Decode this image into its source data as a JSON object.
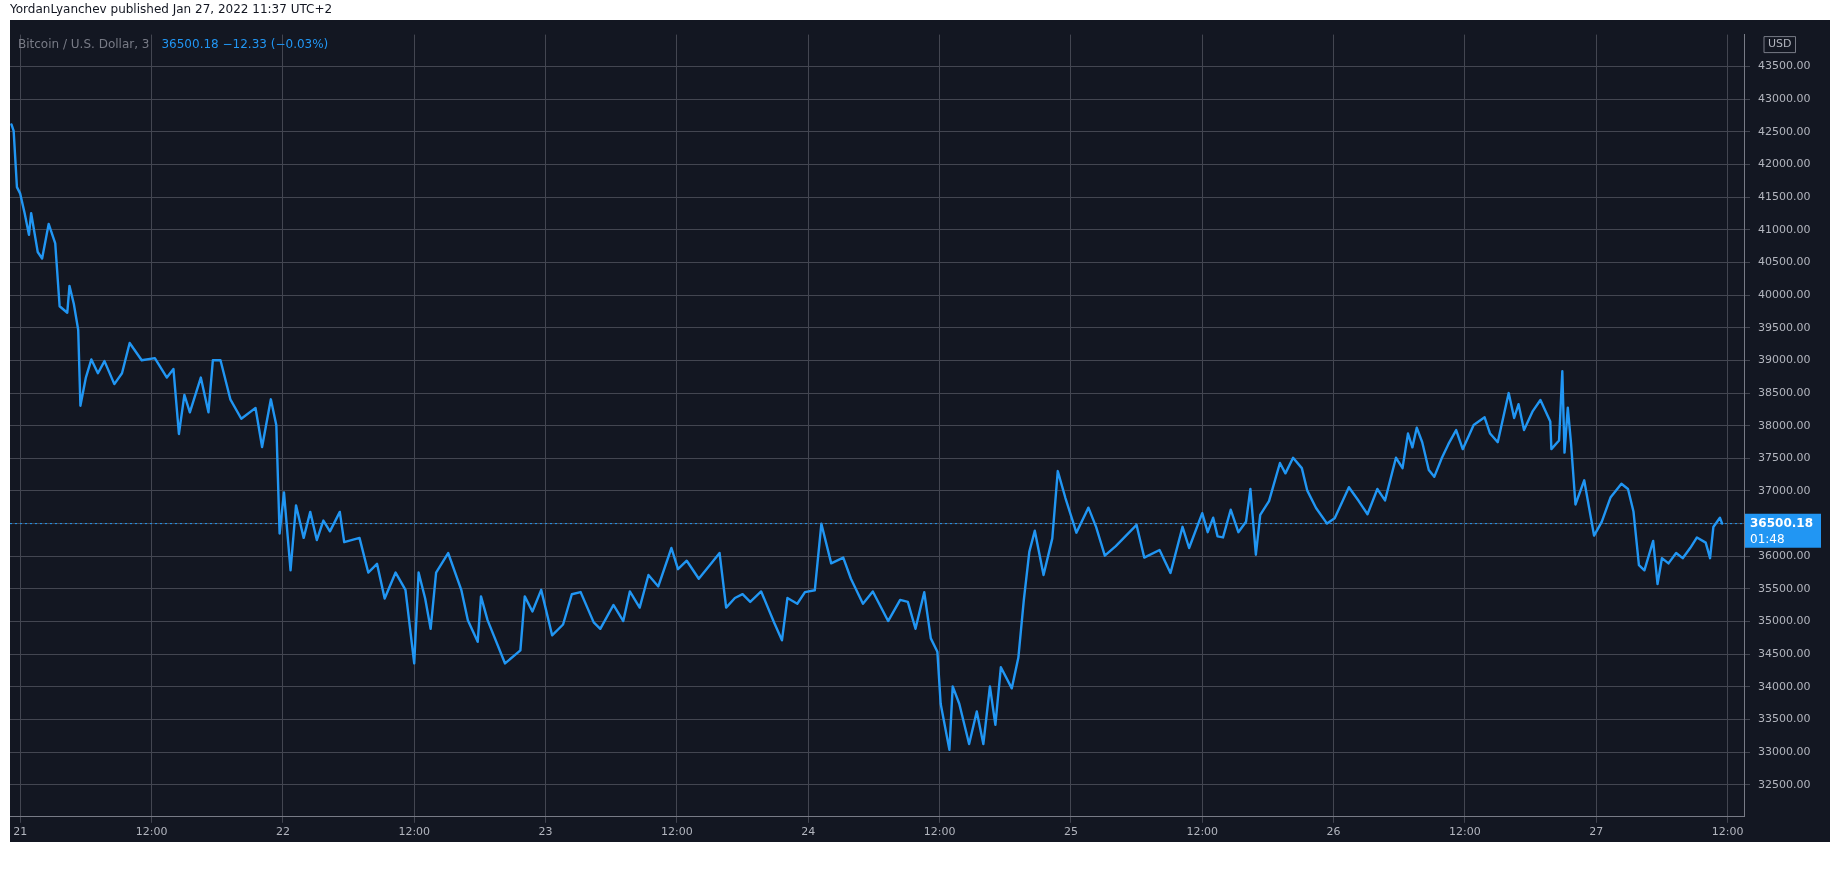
{
  "chart_data": {
    "type": "line",
    "title": "Bitcoin / U.S. Dollar, 3",
    "subtitle": "36500.18 −12.33 (−0.03%)",
    "ylabel": "USD",
    "annotations": [
      "YordanLyanchev published Jan 27, 2022 11:37 UTC+2",
      "01:48"
    ],
    "color": "#2196f3",
    "marker": "none",
    "grid": true,
    "xlim": [
      "2022-01-20T23:04",
      "2022-01-27T13:30"
    ],
    "ylim": [
      32010,
      43990
    ],
    "xticks": [
      {
        "value": "2022-01-21T00:00",
        "label": "21"
      },
      {
        "value": "2022-01-21T12:00",
        "label": "12:00"
      },
      {
        "value": "2022-01-22T00:00",
        "label": "22"
      },
      {
        "value": "2022-01-22T12:00",
        "label": "12:00"
      },
      {
        "value": "2022-01-23T00:00",
        "label": "23"
      },
      {
        "value": "2022-01-23T12:00",
        "label": "12:00"
      },
      {
        "value": "2022-01-24T00:00",
        "label": "24"
      },
      {
        "value": "2022-01-24T12:00",
        "label": "12:00"
      },
      {
        "value": "2022-01-25T00:00",
        "label": "25"
      },
      {
        "value": "2022-01-25T12:00",
        "label": "12:00"
      },
      {
        "value": "2022-01-26T00:00",
        "label": "26"
      },
      {
        "value": "2022-01-26T12:00",
        "label": "12:00"
      },
      {
        "value": "2022-01-27T00:00",
        "label": "27"
      },
      {
        "value": "2022-01-27T12:00",
        "label": "12:00"
      }
    ],
    "yticks": [
      {
        "value": 32500,
        "label": "32500.00"
      },
      {
        "value": 33000,
        "label": "33000.00"
      },
      {
        "value": 33500,
        "label": "33500.00"
      },
      {
        "value": 34000,
        "label": "34000.00"
      },
      {
        "value": 34500,
        "label": "34500.00"
      },
      {
        "value": 35000,
        "label": "35000.00"
      },
      {
        "value": 35500,
        "label": "35500.00"
      },
      {
        "value": 36000,
        "label": "36000.00"
      },
      {
        "value": 36500,
        "label": null
      },
      {
        "value": 37000,
        "label": "37000.00"
      },
      {
        "value": 37500,
        "label": "37500.00"
      },
      {
        "value": 38000,
        "label": "38000.00"
      },
      {
        "value": 38500,
        "label": "38500.00"
      },
      {
        "value": 39000,
        "label": "39000.00"
      },
      {
        "value": 39500,
        "label": "39500.00"
      },
      {
        "value": 40000,
        "label": "40000.00"
      },
      {
        "value": 40500,
        "label": "40500.00"
      },
      {
        "value": 41000,
        "label": "41000.00"
      },
      {
        "value": 41500,
        "label": "41500.00"
      },
      {
        "value": 42000,
        "label": "42000.00"
      },
      {
        "value": 42500,
        "label": "42500.00"
      },
      {
        "value": 43000,
        "label": "43000.00"
      },
      {
        "value": 43500,
        "label": "43500.00"
      }
    ],
    "ref_lines": [
      {
        "axis": "y",
        "value": 36500.18,
        "label": "36500.18",
        "color": "#2196f3",
        "line_style": "dotted"
      }
    ],
    "x": [
      "2022-01-20T23:12",
      "2022-01-20T23:24",
      "2022-01-20T23:42",
      "2022-01-21T00:00",
      "2022-01-21T00:24",
      "2022-01-21T00:48",
      "2022-01-21T01:00",
      "2022-01-21T01:36",
      "2022-01-21T02:00",
      "2022-01-21T02:36",
      "2022-01-21T03:12",
      "2022-01-21T03:36",
      "2022-01-21T04:18",
      "2022-01-21T04:30",
      "2022-01-21T04:54",
      "2022-01-21T05:18",
      "2022-01-21T05:30",
      "2022-01-21T06:00",
      "2022-01-21T06:30",
      "2022-01-21T07:06",
      "2022-01-21T07:42",
      "2022-01-21T08:36",
      "2022-01-21T09:18",
      "2022-01-21T10:00",
      "2022-01-21T11:06",
      "2022-01-21T12:18",
      "2022-01-21T13:24",
      "2022-01-21T14:00",
      "2022-01-21T14:30",
      "2022-01-21T15:00",
      "2022-01-21T15:30",
      "2022-01-21T16:30",
      "2022-01-21T17:12",
      "2022-01-21T17:36",
      "2022-01-21T18:18",
      "2022-01-21T19:12",
      "2022-01-21T20:12",
      "2022-01-21T21:30",
      "2022-01-21T22:06",
      "2022-01-21T22:54",
      "2022-01-21T23:24",
      "2022-01-21T23:42",
      "2022-01-22T00:06",
      "2022-01-22T00:42",
      "2022-01-22T01:12",
      "2022-01-22T01:54",
      "2022-01-22T02:30",
      "2022-01-22T03:06",
      "2022-01-22T03:42",
      "2022-01-22T04:18",
      "2022-01-22T05:12",
      "2022-01-22T05:36",
      "2022-01-22T07:00",
      "2022-01-22T07:48",
      "2022-01-22T08:36",
      "2022-01-22T09:18",
      "2022-01-22T10:18",
      "2022-01-22T11:12",
      "2022-01-22T12:00",
      "2022-01-22T12:24",
      "2022-01-22T13:00",
      "2022-01-22T13:30",
      "2022-01-22T14:00",
      "2022-01-22T15:06",
      "2022-01-22T16:18",
      "2022-01-22T16:54",
      "2022-01-22T17:48",
      "2022-01-22T18:06",
      "2022-01-22T18:42",
      "2022-01-22T20:18",
      "2022-01-22T21:42",
      "2022-01-22T22:06",
      "2022-01-22T22:48",
      "2022-01-22T23:36",
      "2022-01-23T00:36",
      "2022-01-23T01:36",
      "2022-01-23T02:24",
      "2022-01-23T03:12",
      "2022-01-23T04:24",
      "2022-01-23T05:00",
      "2022-01-23T06:12",
      "2022-01-23T07:06",
      "2022-01-23T07:42",
      "2022-01-23T08:36",
      "2022-01-23T09:24",
      "2022-01-23T10:18",
      "2022-01-23T11:30",
      "2022-01-23T12:06",
      "2022-01-23T12:54",
      "2022-01-23T14:00",
      "2022-01-23T15:00",
      "2022-01-23T15:54",
      "2022-01-23T16:30",
      "2022-01-23T17:18",
      "2022-01-23T18:00",
      "2022-01-23T18:42",
      "2022-01-23T19:42",
      "2022-01-23T20:54",
      "2022-01-23T21:36",
      "2022-01-23T22:06",
      "2022-01-23T23:00",
      "2022-01-23T23:42",
      "2022-01-24T00:36",
      "2022-01-24T01:12",
      "2022-01-24T02:06",
      "2022-01-24T03:12",
      "2022-01-24T03:54",
      "2022-01-24T05:00",
      "2022-01-24T05:54",
      "2022-01-24T07:18",
      "2022-01-24T08:24",
      "2022-01-24T09:06",
      "2022-01-24T09:48",
      "2022-01-24T10:36",
      "2022-01-24T11:12",
      "2022-01-24T11:48",
      "2022-01-24T12:06",
      "2022-01-24T12:54",
      "2022-01-24T13:12",
      "2022-01-24T13:48",
      "2022-01-24T14:42",
      "2022-01-24T15:24",
      "2022-01-24T16:00",
      "2022-01-24T16:36",
      "2022-01-24T17:06",
      "2022-01-24T17:36",
      "2022-01-24T18:36",
      "2022-01-24T19:12",
      "2022-01-24T19:42",
      "2022-01-24T20:12",
      "2022-01-24T20:42",
      "2022-01-24T21:30",
      "2022-01-24T22:18",
      "2022-01-24T22:48",
      "2022-01-24T23:30",
      "2022-01-25T00:30",
      "2022-01-25T01:36",
      "2022-01-25T02:18",
      "2022-01-25T03:06",
      "2022-01-25T04:06",
      "2022-01-25T06:00",
      "2022-01-25T06:42",
      "2022-01-25T08:06",
      "2022-01-25T09:06",
      "2022-01-25T10:12",
      "2022-01-25T10:48",
      "2022-01-25T12:00",
      "2022-01-25T12:30",
      "2022-01-25T13:00",
      "2022-01-25T13:24",
      "2022-01-25T13:54",
      "2022-01-25T14:36",
      "2022-01-25T15:18",
      "2022-01-25T16:00",
      "2022-01-25T16:24",
      "2022-01-25T16:54",
      "2022-01-25T17:18",
      "2022-01-25T18:06",
      "2022-01-25T19:06",
      "2022-01-25T19:36",
      "2022-01-25T20:18",
      "2022-01-25T21:06",
      "2022-01-25T21:36",
      "2022-01-25T22:24",
      "2022-01-25T23:24",
      "2022-01-26T00:06",
      "2022-01-26T01:24",
      "2022-01-26T02:18",
      "2022-01-26T03:06",
      "2022-01-26T04:00",
      "2022-01-26T04:42",
      "2022-01-26T05:42",
      "2022-01-26T06:18",
      "2022-01-26T06:48",
      "2022-01-26T07:12",
      "2022-01-26T07:36",
      "2022-01-26T08:06",
      "2022-01-26T08:42",
      "2022-01-26T09:12",
      "2022-01-26T09:54",
      "2022-01-26T10:30",
      "2022-01-26T11:12",
      "2022-01-26T11:48",
      "2022-01-26T12:48",
      "2022-01-26T13:48",
      "2022-01-26T14:18",
      "2022-01-26T15:00",
      "2022-01-26T16:00",
      "2022-01-26T16:30",
      "2022-01-26T16:54",
      "2022-01-26T17:24",
      "2022-01-26T18:12",
      "2022-01-26T18:54",
      "2022-01-26T19:48",
      "2022-01-26T19:54",
      "2022-01-26T20:36",
      "2022-01-26T20:54",
      "2022-01-26T21:06",
      "2022-01-26T21:24",
      "2022-01-26T21:42",
      "2022-01-26T22:06",
      "2022-01-26T22:54",
      "2022-01-26T23:48",
      "2022-01-27T00:30",
      "2022-01-27T01:18",
      "2022-01-27T02:18",
      "2022-01-27T02:54",
      "2022-01-27T03:24",
      "2022-01-27T03:54",
      "2022-01-27T04:24",
      "2022-01-27T05:12",
      "2022-01-27T05:36",
      "2022-01-27T06:00",
      "2022-01-27T06:36",
      "2022-01-27T07:18",
      "2022-01-27T07:54",
      "2022-01-27T08:36",
      "2022-01-27T09:12",
      "2022-01-27T10:00",
      "2022-01-27T10:24",
      "2022-01-27T10:42",
      "2022-01-27T11:18",
      "2022-01-27T11:30"
    ],
    "values": [
      42615,
      42516,
      41654,
      41554,
      41256,
      40924,
      41256,
      40660,
      40560,
      41090,
      40792,
      39830,
      39730,
      40142,
      39863,
      39466,
      38305,
      38737,
      39015,
      38803,
      38989,
      38637,
      38803,
      39267,
      39002,
      39035,
      38737,
      38869,
      37873,
      38471,
      38205,
      38737,
      38205,
      39002,
      39002,
      38404,
      38106,
      38272,
      37674,
      38404,
      38006,
      36348,
      36979,
      35785,
      36780,
      36282,
      36680,
      36249,
      36547,
      36382,
      36680,
      36216,
      36282,
      35751,
      35884,
      35353,
      35751,
      35486,
      34359,
      35751,
      35353,
      34889,
      35751,
      36050,
      35486,
      35022,
      34690,
      35386,
      35022,
      34359,
      34558,
      35386,
      35154,
      35486,
      34790,
      34955,
      35419,
      35452,
      34988,
      34889,
      35254,
      35008,
      35461,
      35214,
      35714,
      35538,
      36127,
      35803,
      35932,
      35656,
      35862,
      36050,
      35214,
      35361,
      35420,
      35302,
      35461,
      34978,
      34713,
      35361,
      35273,
      35450,
      35479,
      36498,
      35891,
      35980,
      35656,
      35273,
      35461,
      35008,
      35332,
      35302,
      34890,
      35450,
      34743,
      34537,
      33742,
      33035,
      34007,
      33742,
      33124,
      33624,
      33124,
      34007,
      33418,
      34301,
      33977,
      34448,
      35332,
      36068,
      36392,
      35714,
      36274,
      37305,
      36892,
      36362,
      36745,
      36451,
      36009,
      36156,
      36480,
      35980,
      36097,
      35744,
      36451,
      36127,
      36660,
      36369,
      36591,
      36305,
      36289,
      36713,
      36369,
      36528,
      37031,
      36024,
      36634,
      36846,
      37429,
      37270,
      37509,
      37350,
      37005,
      36740,
      36501,
      36581,
      37058,
      36846,
      36644,
      37031,
      36856,
      37509,
      37350,
      37880,
      37668,
      37970,
      37747,
      37323,
      37217,
      37509,
      37721,
      37933,
      37641,
      38012,
      38129,
      37880,
      37747,
      38500,
      38118,
      38330,
      37933,
      38224,
      38394,
      38065,
      37641,
      37774,
      38834,
      37588,
      38277,
      37721,
      36793,
      37164,
      36316,
      36528,
      36899,
      37111,
      37031,
      36687,
      35865,
      35785,
      36236,
      35573,
      35971,
      35891,
      36050,
      35971,
      36130,
      36289,
      36209,
      35971,
      36448,
      36591,
      36500.18
    ]
  }
}
